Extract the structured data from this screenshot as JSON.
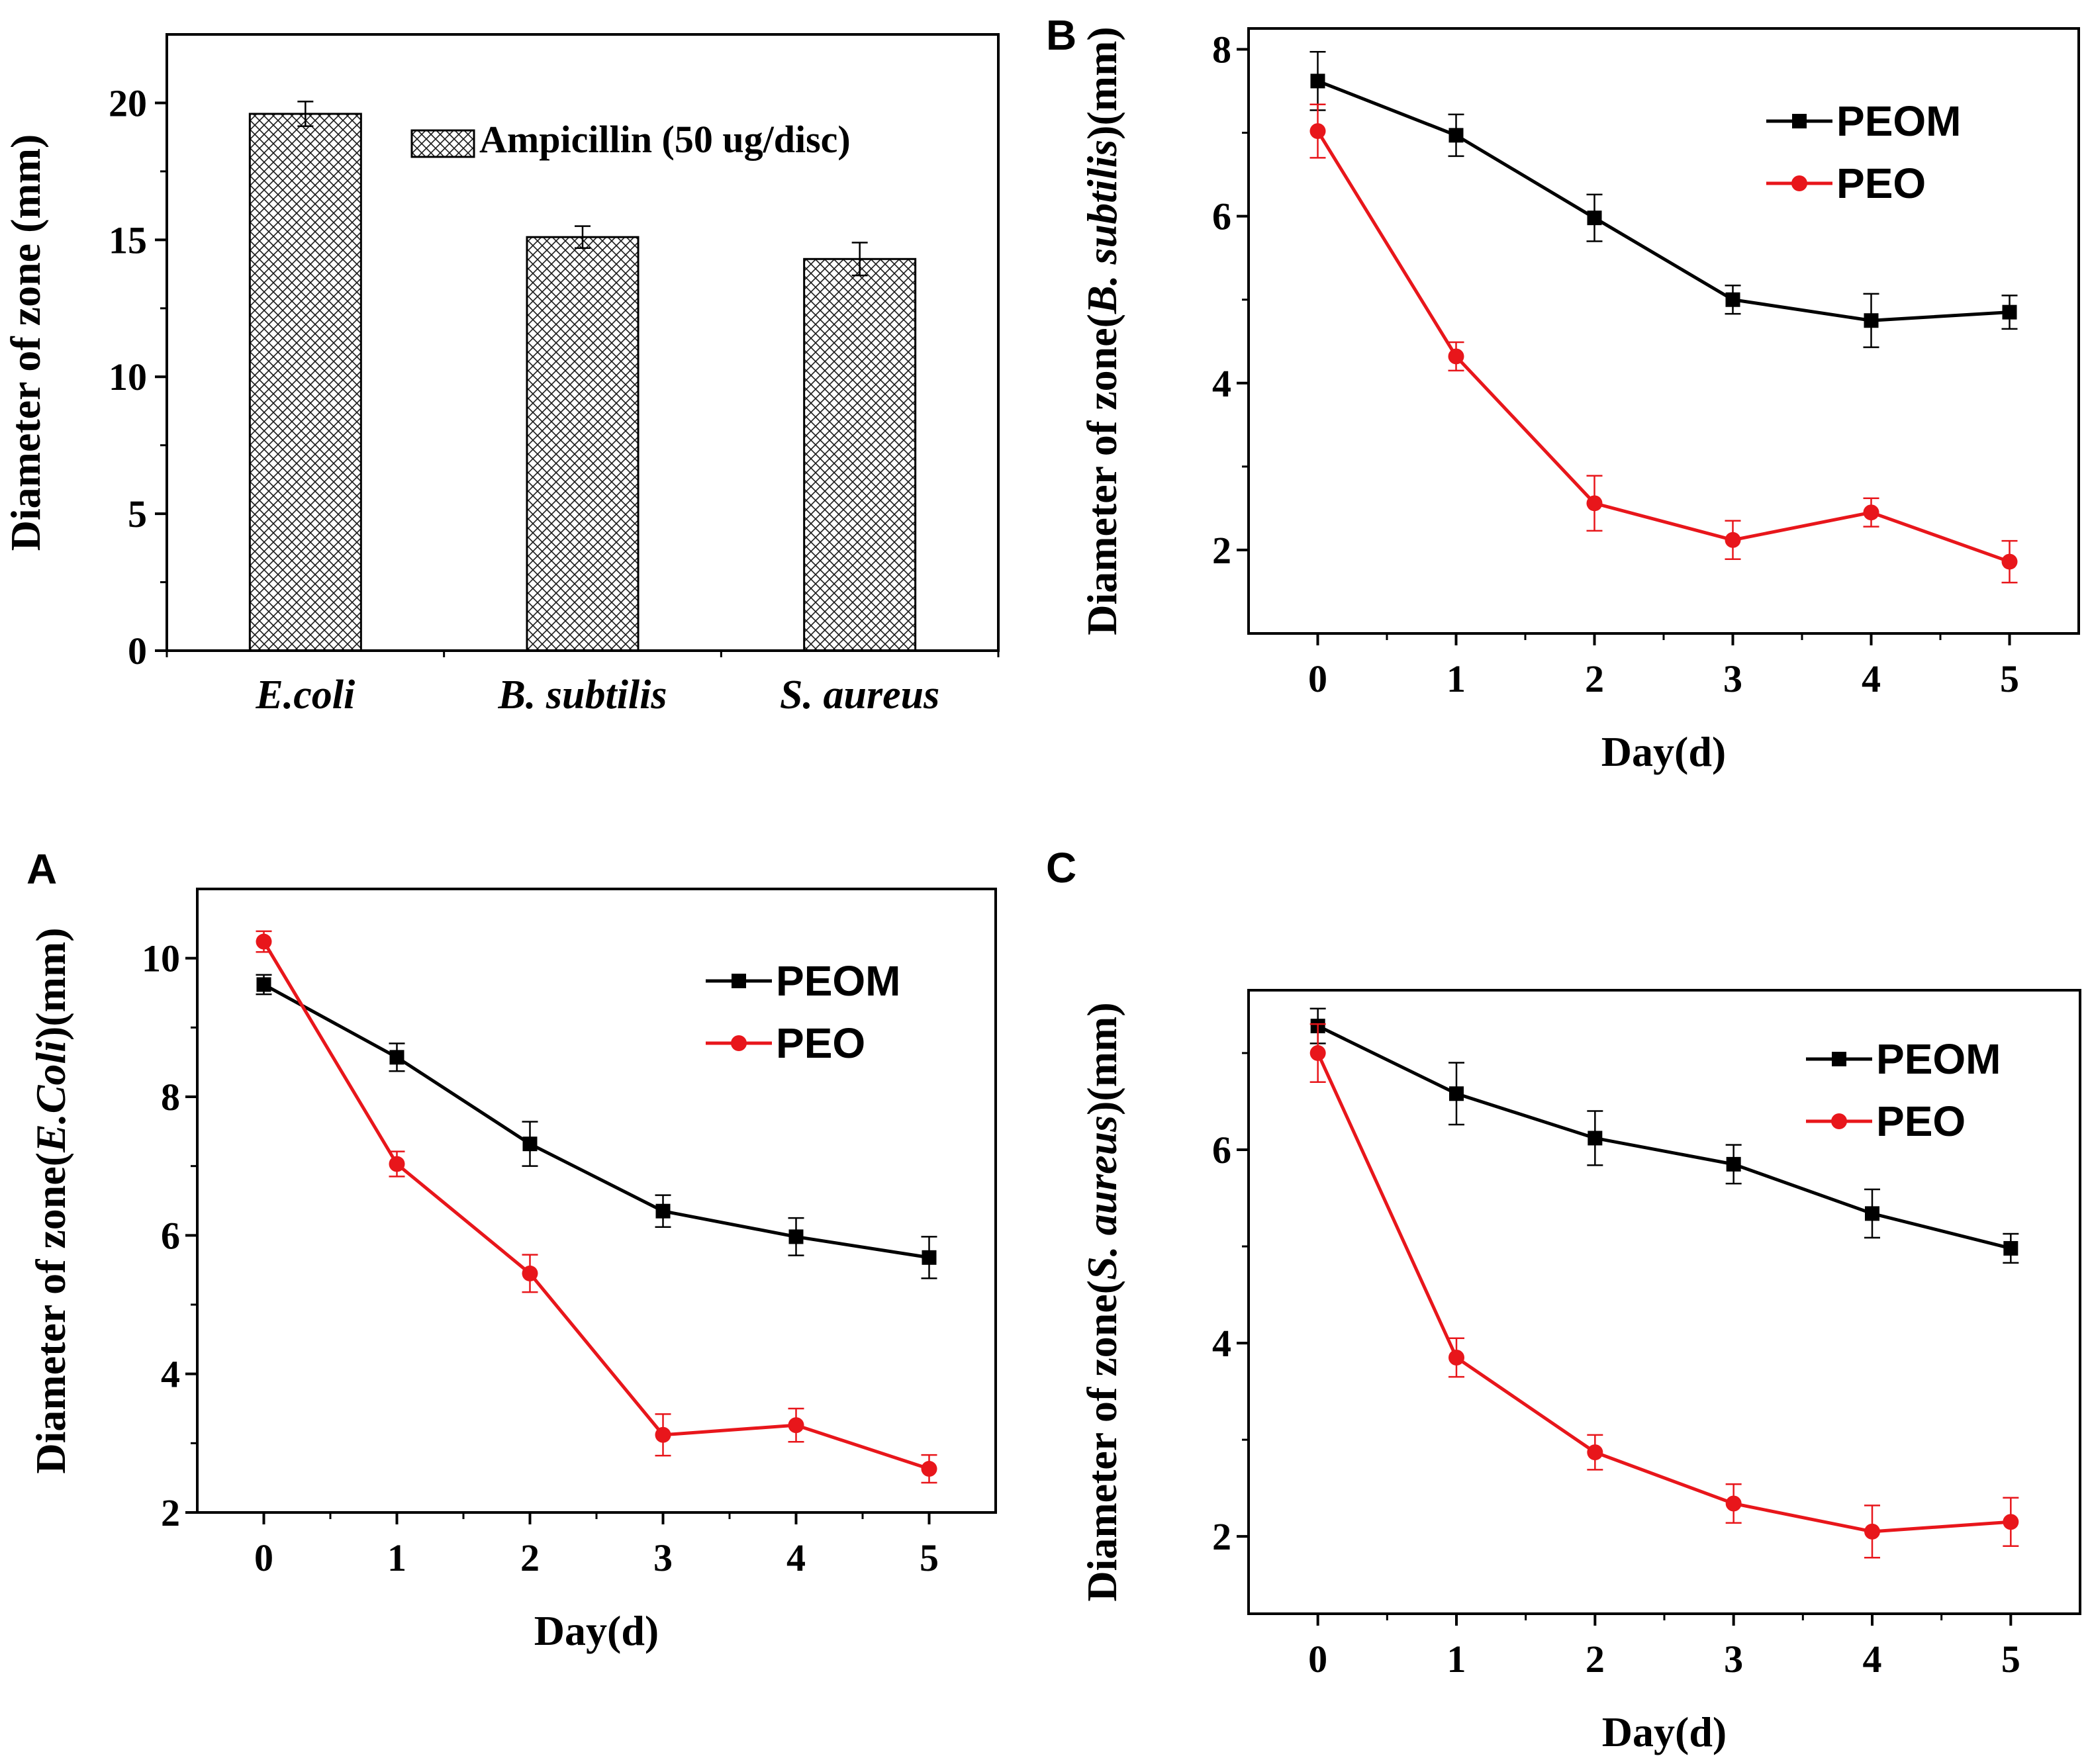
{
  "chart_data": [
    {
      "id": "bar",
      "type": "bar",
      "panel_letter": "",
      "categories": [
        "E.coli",
        "B. subtilis",
        "S. aureus"
      ],
      "series": [
        {
          "name": "Ampicillin  (50 ug/disc)",
          "values": [
            19.6,
            15.1,
            14.3
          ],
          "errors": [
            0.45,
            0.4,
            0.6
          ]
        }
      ],
      "ylabel": "Diameter of  zone (mm)",
      "xlabel": "",
      "ylim": [
        0,
        22.5
      ],
      "yticks": [
        0,
        5,
        10,
        15,
        20
      ],
      "legend_position": "top-right",
      "grid": false
    },
    {
      "id": "B",
      "type": "line",
      "panel_letter": "B",
      "x": [
        0,
        1,
        2,
        3,
        4,
        5
      ],
      "series": [
        {
          "name": "PEOM",
          "color": "#000000",
          "marker": "square",
          "values": [
            7.62,
            6.97,
            5.98,
            5.0,
            4.75,
            4.85
          ],
          "errors": [
            0.35,
            0.25,
            0.28,
            0.17,
            0.32,
            0.2
          ]
        },
        {
          "name": "PEO",
          "color": "#e8161b",
          "marker": "circle",
          "values": [
            7.02,
            4.32,
            2.56,
            2.12,
            2.45,
            1.86
          ],
          "errors": [
            0.32,
            0.17,
            0.33,
            0.23,
            0.17,
            0.25
          ]
        }
      ],
      "ylabel_prefix": "Diameter of  zone",
      "ylabel_species": "B. subtilis",
      "ylabel_suffix": "(mm)",
      "xlabel": "Day(d)",
      "xlim": [
        -0.5,
        5.5
      ],
      "ylim": [
        1.0,
        8.25
      ],
      "xticks": [
        0,
        1,
        2,
        3,
        4,
        5
      ],
      "yticks": [
        2,
        4,
        6,
        8
      ],
      "legend_position": "top-right",
      "grid": false
    },
    {
      "id": "A",
      "type": "line",
      "panel_letter": "A",
      "x": [
        0,
        1,
        2,
        3,
        4,
        5
      ],
      "series": [
        {
          "name": "PEOM",
          "color": "#000000",
          "marker": "square",
          "values": [
            9.62,
            8.57,
            7.32,
            6.35,
            5.98,
            5.68
          ],
          "errors": [
            0.14,
            0.2,
            0.32,
            0.23,
            0.27,
            0.3
          ]
        },
        {
          "name": "PEO",
          "color": "#e8161b",
          "marker": "circle",
          "values": [
            10.24,
            7.03,
            5.45,
            3.12,
            3.26,
            2.63
          ],
          "errors": [
            0.15,
            0.18,
            0.27,
            0.3,
            0.24,
            0.2
          ]
        }
      ],
      "ylabel_prefix": "Diameter of  zone",
      "ylabel_species": "E.Coli",
      "ylabel_suffix": "(mm)",
      "xlabel": "Day(d)",
      "xlim": [
        -0.5,
        5.5
      ],
      "ylim": [
        2.0,
        11.0
      ],
      "xticks": [
        0,
        1,
        2,
        3,
        4,
        5
      ],
      "yticks": [
        2,
        4,
        6,
        8,
        10
      ],
      "legend_position": "top-right",
      "grid": false
    },
    {
      "id": "C",
      "type": "line",
      "panel_letter": "C",
      "x": [
        0,
        1,
        2,
        3,
        4,
        5
      ],
      "series": [
        {
          "name": "PEOM",
          "color": "#000000",
          "marker": "square",
          "values": [
            7.28,
            6.58,
            6.12,
            5.85,
            5.34,
            4.98
          ],
          "errors": [
            0.18,
            0.32,
            0.28,
            0.2,
            0.25,
            0.15
          ]
        },
        {
          "name": "PEO",
          "color": "#e8161b",
          "marker": "circle",
          "values": [
            7.0,
            3.85,
            2.87,
            2.34,
            2.05,
            2.15
          ],
          "errors": [
            0.3,
            0.2,
            0.18,
            0.2,
            0.27,
            0.25
          ]
        }
      ],
      "ylabel_prefix": "Diameter of  zone",
      "ylabel_species": "S. aureus",
      "ylabel_suffix": "(mm)",
      "xlabel": "Day(d)",
      "xlim": [
        -0.5,
        5.5
      ],
      "ylim": [
        1.2,
        7.65
      ],
      "xticks": [
        0,
        1,
        2,
        3,
        4,
        5
      ],
      "yticks": [
        2,
        4,
        6
      ],
      "legend_position": "top-right",
      "grid": false
    }
  ]
}
